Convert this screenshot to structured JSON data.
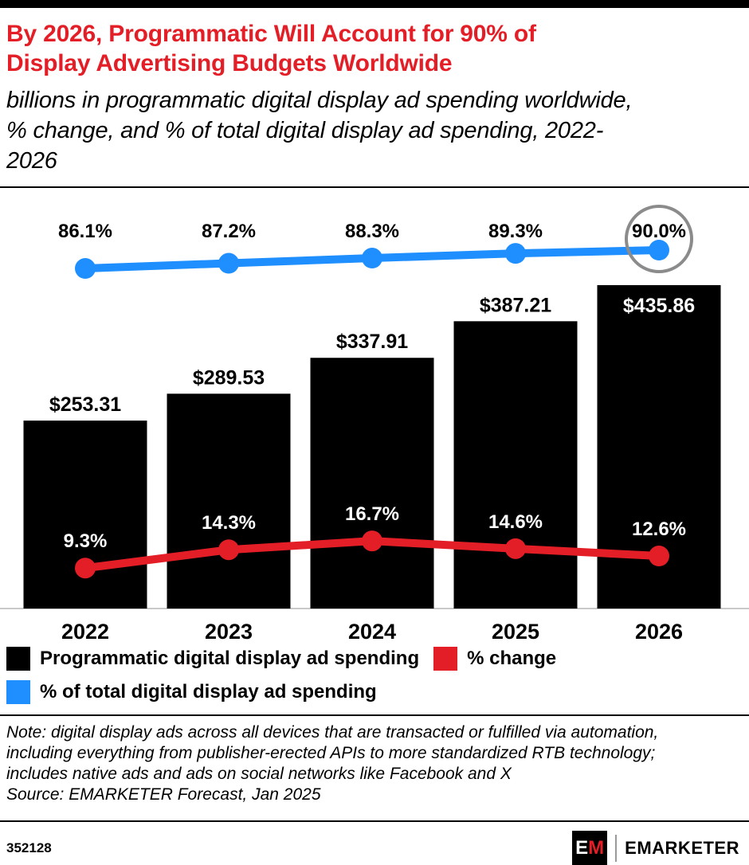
{
  "chart_data": {
    "type": "bar",
    "title": "By 2026, Programmatic Will Account for 90% of Display Advertising Budgets Worldwide",
    "subtitle": "billions in programmatic digital display ad spending worldwide, % change, and % of total digital display ad spending, 2022-2026",
    "categories": [
      "2022",
      "2023",
      "2024",
      "2025",
      "2026"
    ],
    "series": [
      {
        "name": "Programmatic digital display ad spending",
        "type": "bar",
        "color": "#000000",
        "values": [
          253.31,
          289.53,
          337.91,
          387.21,
          435.86
        ],
        "labels": [
          "$253.31",
          "$289.53",
          "$337.91",
          "$387.21",
          "$435.86"
        ]
      },
      {
        "name": "% change",
        "type": "line",
        "color": "#e41e26",
        "values": [
          9.3,
          14.3,
          16.7,
          14.6,
          12.6
        ],
        "labels": [
          "9.3%",
          "14.3%",
          "16.7%",
          "14.6%",
          "12.6%"
        ]
      },
      {
        "name": "% of total digital display ad spending",
        "type": "line",
        "color": "#1f8fff",
        "values": [
          86.1,
          87.2,
          88.3,
          89.3,
          90.0
        ],
        "labels": [
          "86.1%",
          "87.2%",
          "88.3%",
          "89.3%",
          "90.0%"
        ],
        "highlight_last": true,
        "highlight_color": "#8b8b8b"
      }
    ],
    "ylim": [
      0,
      450
    ],
    "grid": false,
    "legend_position": "bottom",
    "note": "Note: digital display ads across all devices that are transacted or fulfilled via automation, including everything from publisher-erected APIs to more standardized RTB technology; includes native ads and ads on social networks like Facebook and X",
    "source": "Source: EMARKETER Forecast, Jan 2025"
  },
  "footer": {
    "chart_id": "352128",
    "logo": {
      "letter_e": "E",
      "letter_m": "M",
      "wordmark": "EMARKETER"
    }
  }
}
